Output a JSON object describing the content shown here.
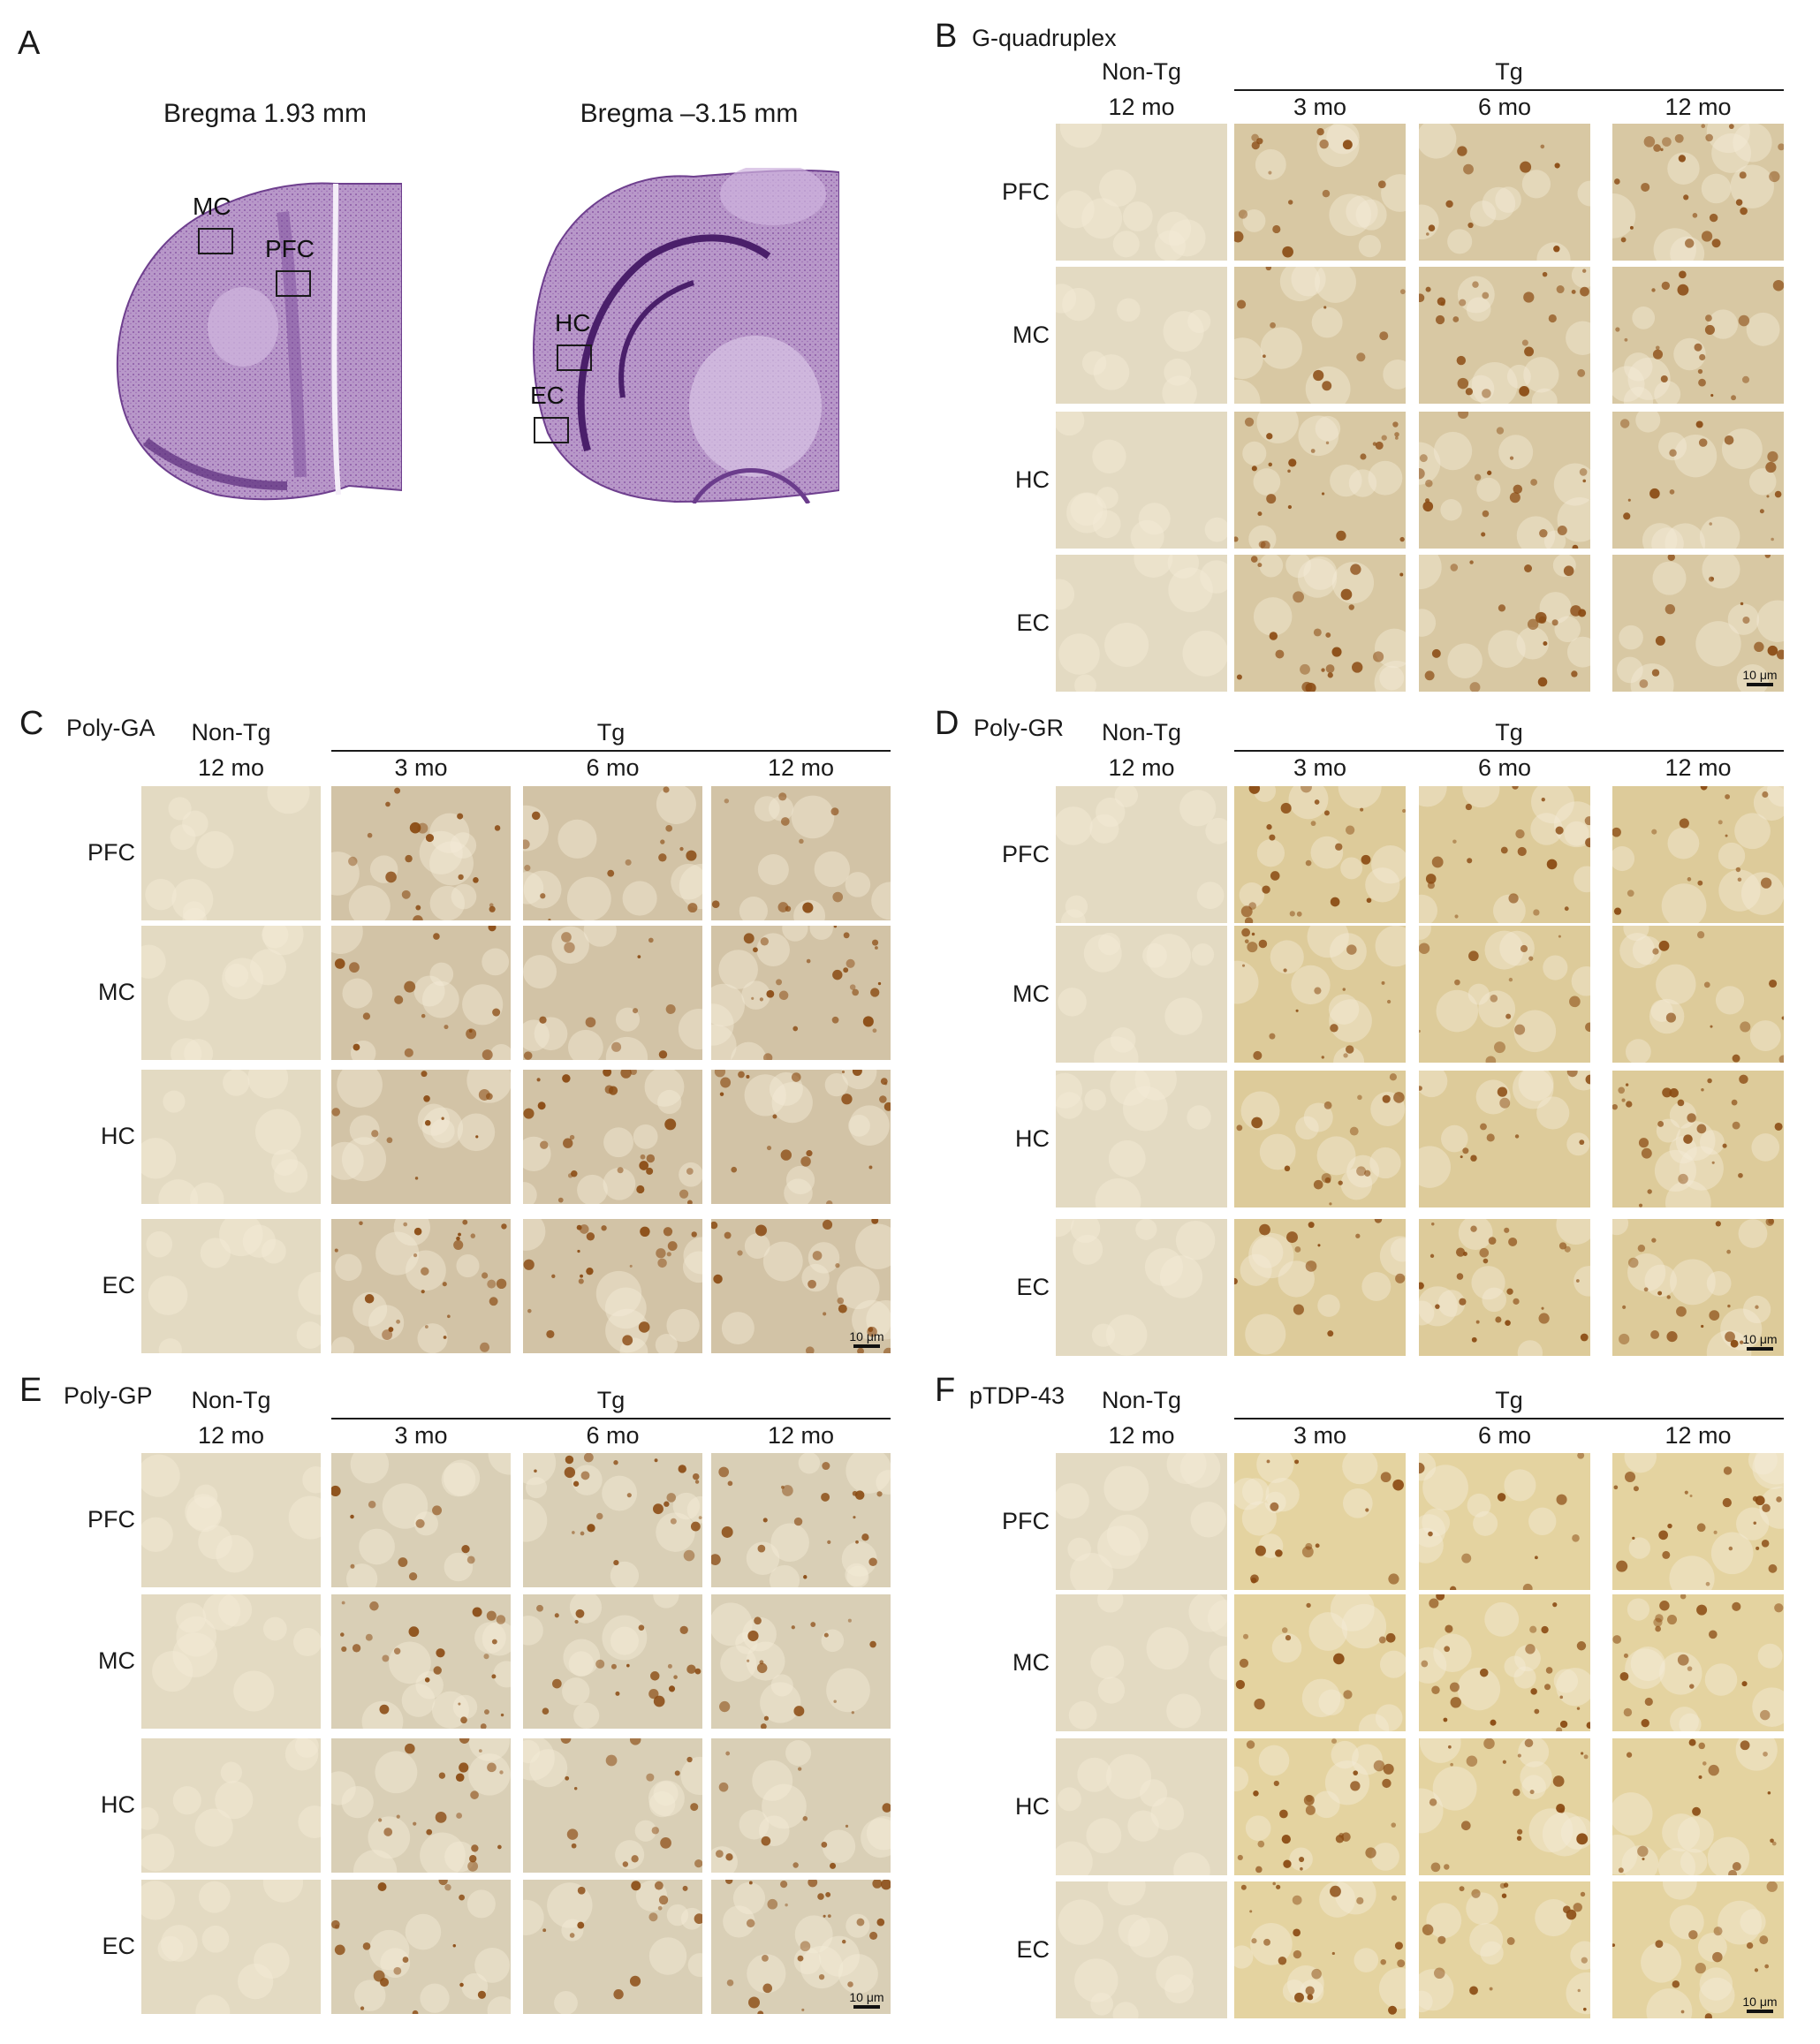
{
  "panel_a": {
    "letter": "A",
    "left_section": {
      "caption": "Bregma 1.93 mm",
      "roi_labels": [
        "MC",
        "PFC"
      ]
    },
    "right_section": {
      "caption": "Bregma –3.15 mm",
      "roi_labels": [
        "HC",
        "EC"
      ]
    }
  },
  "rows": [
    "PFC",
    "MC",
    "HC",
    "EC"
  ],
  "columns": {
    "nontg_top": "Non-Tg",
    "nontg_age": "12 mo",
    "tg": "Tg",
    "ages": [
      "3 mo",
      "6 mo",
      "12 mo"
    ]
  },
  "panels": [
    {
      "letter": "B",
      "title": "G-quadruplex",
      "scale": "10 μm",
      "tone": "#d8c8a3"
    },
    {
      "letter": "C",
      "title": "Poly-GA",
      "scale": "10 μm",
      "tone": "#d2c3a6"
    },
    {
      "letter": "D",
      "title": "Poly-GR",
      "scale": "10 μm",
      "tone": "#ddcb9a"
    },
    {
      "letter": "E",
      "title": "Poly-GP",
      "scale": "10 μm",
      "tone": "#d9cfb6"
    },
    {
      "letter": "F",
      "title": "pTDP-43",
      "scale": "10 μm",
      "tone": "#e4d3a0"
    }
  ],
  "colors": {
    "brain_stain": "#8b5aa6",
    "control_tile": "#e3dac2",
    "dab": "#8a4a12"
  }
}
